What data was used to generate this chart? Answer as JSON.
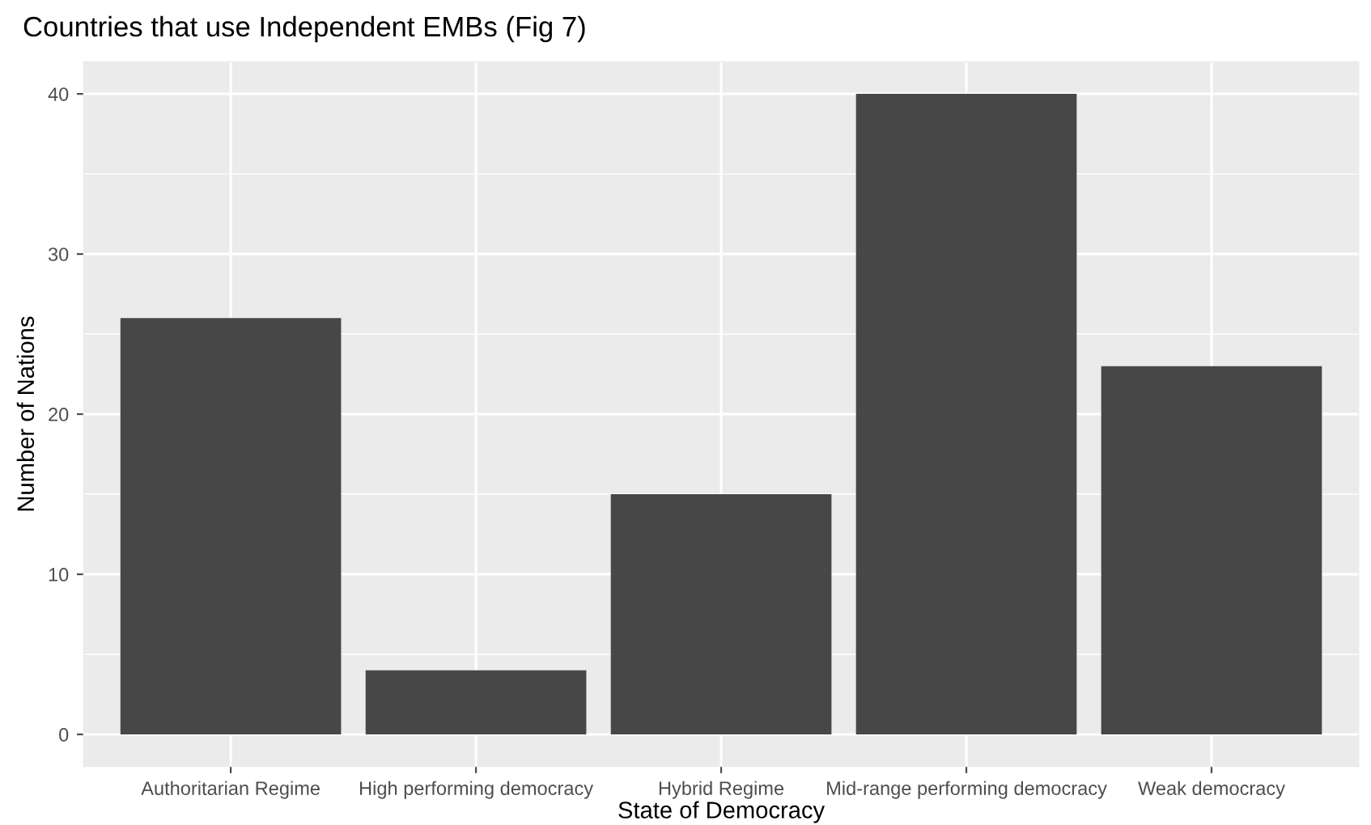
{
  "chart_data": {
    "type": "bar",
    "title": "Countries that use Independent EMBs (Fig 7)",
    "xlabel": "State of Democracy",
    "ylabel": "Number of Nations",
    "categories": [
      "Authoritarian Regime",
      "High performing democracy",
      "Hybrid Regime",
      "Mid-range performing democracy",
      "Weak democracy"
    ],
    "values": [
      26,
      4,
      15,
      40,
      23
    ],
    "color": "#474747",
    "ylim": [
      -2,
      42
    ],
    "yticks": [
      0,
      10,
      20,
      30,
      40
    ],
    "grid": true
  }
}
